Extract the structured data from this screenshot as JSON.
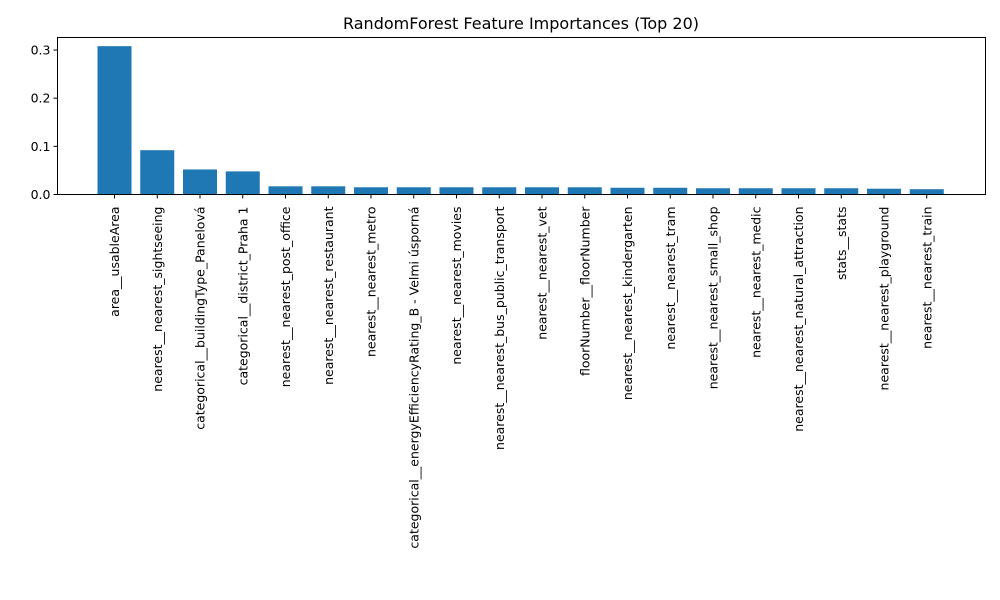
{
  "chart_data": {
    "type": "bar",
    "title": "RandomForest Feature Importances (Top 20)",
    "xlabel": "",
    "ylabel": "",
    "ylim": [
      0,
      0.326
    ],
    "yticks": [
      0.0,
      0.1,
      0.2,
      0.3
    ],
    "ytick_labels": [
      "0.0",
      "0.1",
      "0.2",
      "0.3"
    ],
    "bar_color": "#1f77b4",
    "grid": false,
    "categories": [
      "area__usableArea",
      "nearest__nearest_sightseeing",
      "categorical__buildingType_Panelová",
      "categorical__district_Praha 1",
      "nearest__nearest_post_office",
      "nearest__nearest_restaurant",
      "nearest__nearest_metro",
      "categorical__energyEfficiencyRating_B - Velmi úsporná",
      "nearest__nearest_movies",
      "nearest__nearest_bus_public_transport",
      "nearest__nearest_vet",
      "floorNumber__floorNumber",
      "nearest__nearest_kindergarten",
      "nearest__nearest_tram",
      "nearest__nearest_small_shop",
      "nearest__nearest_medic",
      "nearest__nearest_natural_attraction",
      "stats__stats",
      "nearest__nearest_playground",
      "nearest__nearest_train"
    ],
    "values": [
      0.308,
      0.092,
      0.052,
      0.048,
      0.017,
      0.017,
      0.015,
      0.015,
      0.015,
      0.015,
      0.015,
      0.015,
      0.014,
      0.014,
      0.013,
      0.013,
      0.013,
      0.013,
      0.012,
      0.011
    ]
  }
}
